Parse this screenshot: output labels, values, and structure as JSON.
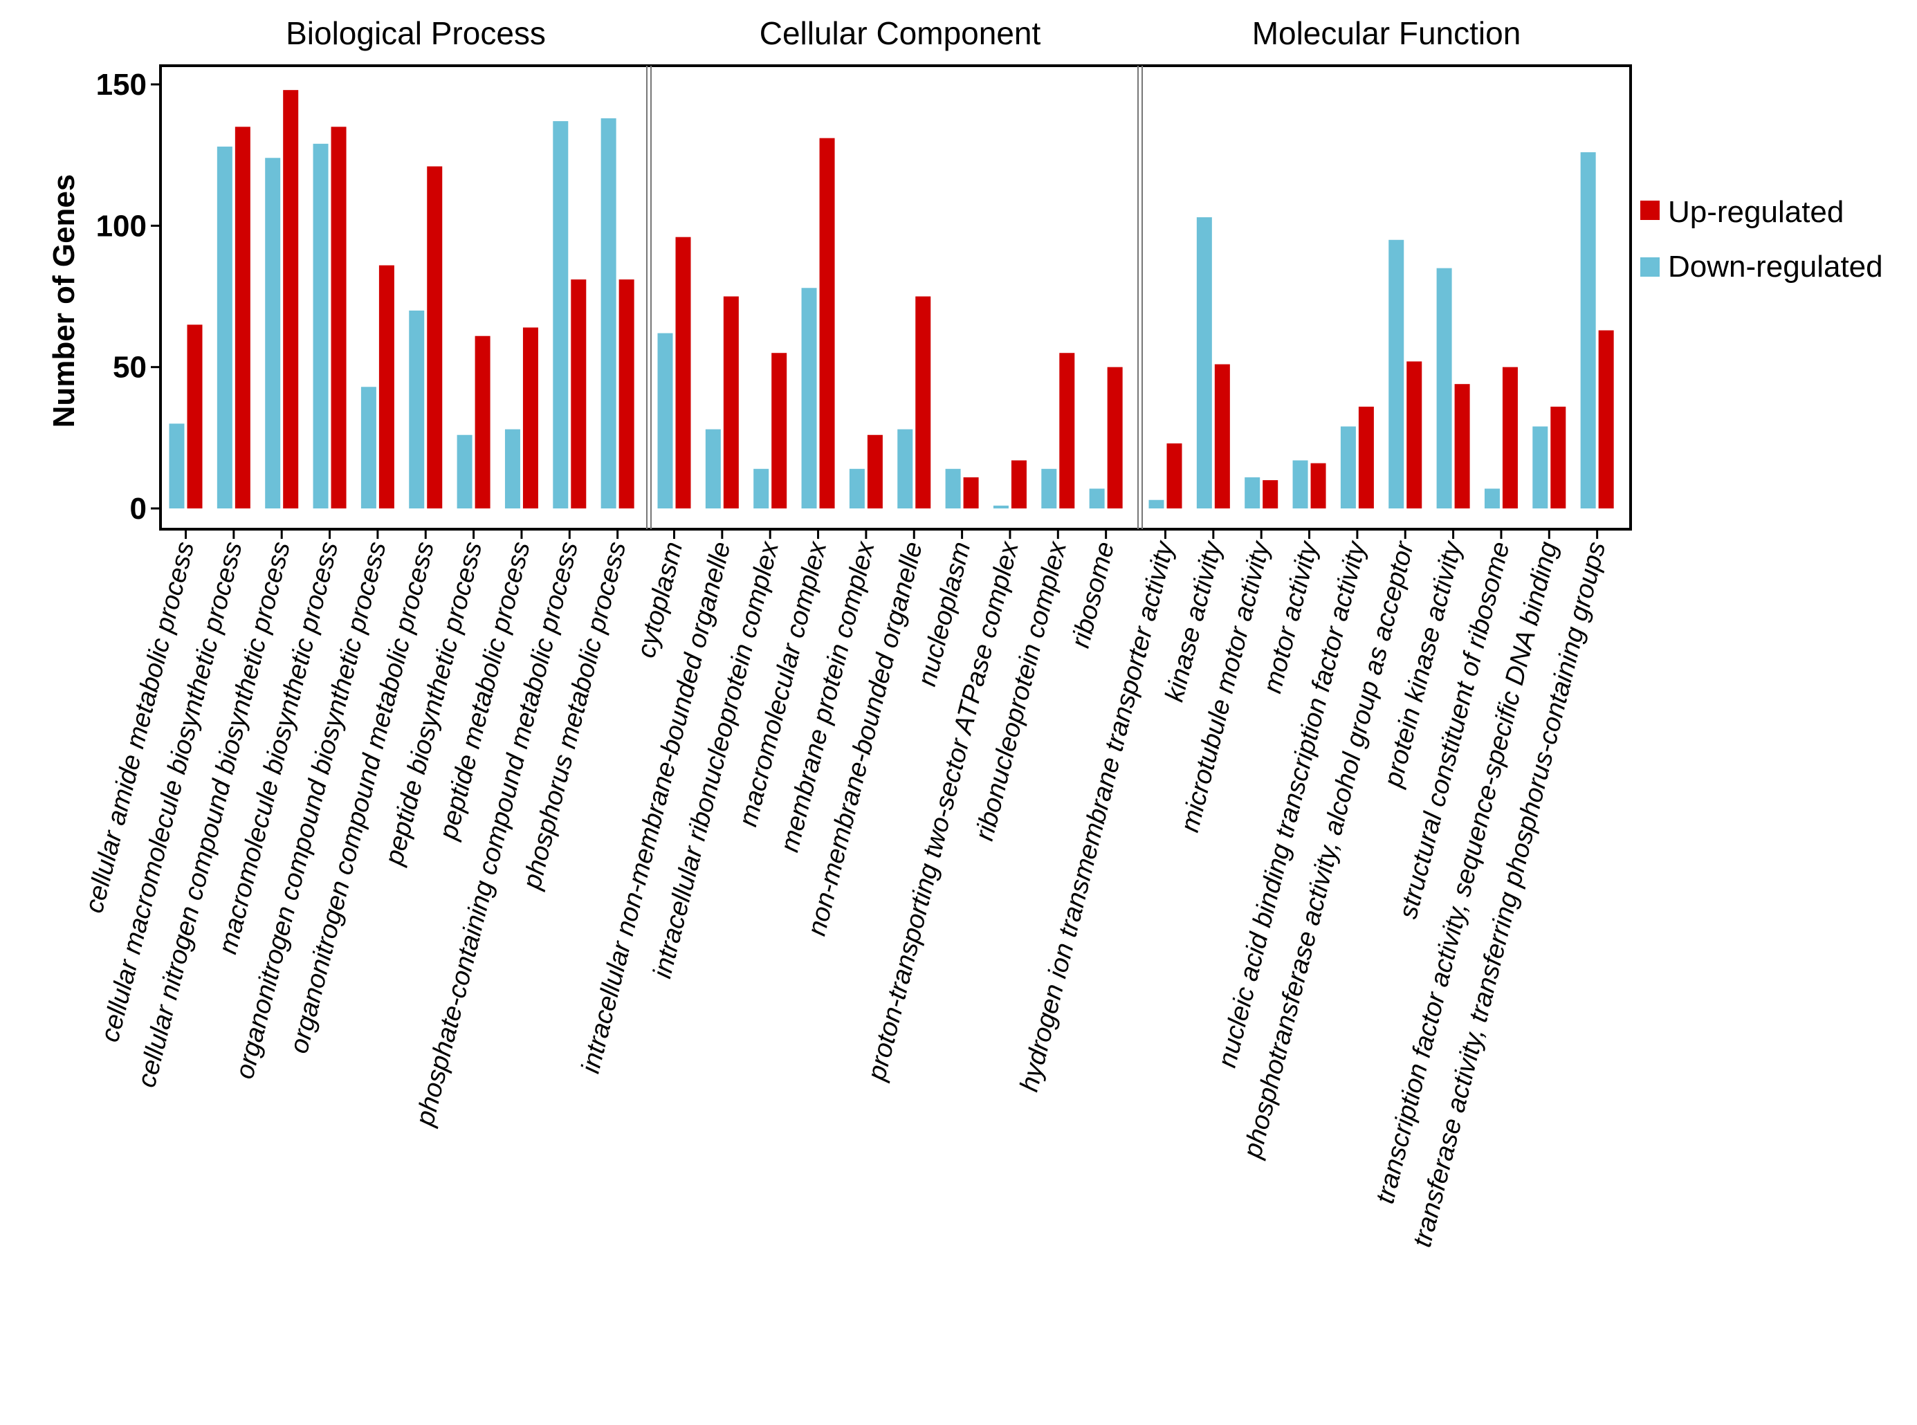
{
  "chart_data": {
    "type": "bar",
    "ylabel": "Number of Genes",
    "ylim": [
      0,
      150
    ],
    "yticks": [
      0,
      50,
      100,
      150
    ],
    "legend": {
      "placement": "right",
      "entries": [
        {
          "name": "Up-regulated",
          "color": "#d00000"
        },
        {
          "name": "Down-regulated",
          "color": "#6cc0d8"
        }
      ]
    },
    "panels": [
      {
        "title": "Biological Process",
        "categories": [
          "cellular amide metabolic process",
          "cellular macromolecule biosynthetic process",
          "cellular nitrogen compound biosynthetic process",
          "macromolecule biosynthetic process",
          "organonitrogen compound biosynthetic process",
          "organonitrogen compound metabolic process",
          "peptide biosynthetic process",
          "peptide metabolic process",
          "phosphate-containing compound metabolic process",
          "phosphorus metabolic process"
        ],
        "series": [
          {
            "name": "Down-regulated",
            "values": [
              30,
              128,
              124,
              129,
              43,
              70,
              26,
              28,
              137,
              138
            ]
          },
          {
            "name": "Up-regulated",
            "values": [
              65,
              135,
              148,
              135,
              86,
              121,
              61,
              64,
              81,
              81
            ]
          }
        ]
      },
      {
        "title": "Cellular Component",
        "categories": [
          "cytoplasm",
          "intracellular non-membrane-bounded organelle",
          "intracellular ribonucleoprotein complex",
          "macromolecular complex",
          "membrane protein complex",
          "non-membrane-bounded organelle",
          "nucleoplasm",
          "proton-transporting two-sector ATPase complex",
          "ribonucleoprotein complex",
          "ribosome"
        ],
        "series": [
          {
            "name": "Down-regulated",
            "values": [
              62,
              28,
              14,
              78,
              14,
              28,
              14,
              1,
              14,
              7
            ]
          },
          {
            "name": "Up-regulated",
            "values": [
              96,
              75,
              55,
              131,
              26,
              75,
              11,
              17,
              55,
              50
            ]
          }
        ]
      },
      {
        "title": "Molecular Function",
        "categories": [
          "hydrogen ion transmembrane transporter activity",
          "kinase activity",
          "microtubule motor activity",
          "motor activity",
          "nucleic acid binding transcription factor activity",
          "phosphotransferase activity, alcohol group as acceptor",
          "protein kinase activity",
          "structural constituent of ribosome",
          "transcription factor activity, sequence-specific DNA binding",
          "transferase activity, transferring phosphorus-containing groups"
        ],
        "series": [
          {
            "name": "Down-regulated",
            "values": [
              3,
              103,
              11,
              17,
              29,
              95,
              85,
              7,
              29,
              126
            ]
          },
          {
            "name": "Up-regulated",
            "values": [
              23,
              51,
              10,
              16,
              36,
              52,
              44,
              50,
              36,
              63
            ]
          }
        ]
      }
    ]
  }
}
